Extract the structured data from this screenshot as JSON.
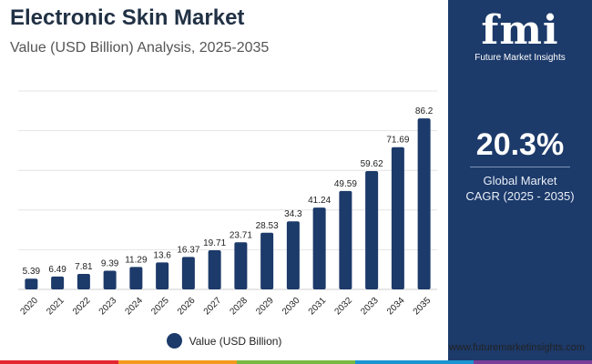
{
  "header": {
    "title": "Electronic Skin Market",
    "subtitle": "Value (USD Billion) Analysis, 2025-2035"
  },
  "chart_data": {
    "type": "bar",
    "title": "Electronic Skin Market",
    "subtitle": "Value (USD Billion) Analysis, 2025-2035",
    "categories": [
      "2020",
      "2021",
      "2022",
      "2023",
      "2024",
      "2025",
      "2026",
      "2027",
      "2028",
      "2029",
      "2030",
      "2031",
      "2032",
      "2033",
      "2034",
      "2035"
    ],
    "series": [
      {
        "name": "Value (USD Billion)",
        "values": [
          5.39,
          6.49,
          7.81,
          9.39,
          11.29,
          13.6,
          16.37,
          19.71,
          23.71,
          28.53,
          34.3,
          41.24,
          49.59,
          59.62,
          71.69,
          86.2
        ],
        "labels": [
          "5.39",
          "6.49",
          "7.81",
          "9.39",
          "11.29",
          "13.6",
          "16.37",
          "19.71",
          "23.71",
          "28.53",
          "34.3",
          "41.24",
          "49.59",
          "59.62",
          "71.69",
          "86.2"
        ]
      }
    ],
    "xlabel": "",
    "ylabel": "",
    "ylim": [
      0,
      100
    ],
    "grid": true,
    "legend_position": "bottom",
    "bar_color": "#1c3a6a"
  },
  "legend": {
    "label": "Value (USD Billion)",
    "color": "#1c3a6a"
  },
  "side_panel": {
    "logo_text": "fmi",
    "logo_tagline": "Future Market Insights",
    "cagr_value": "20.3%",
    "cagr_label_line1": "Global Market",
    "cagr_label_line2": "CAGR (2025 - 2035)",
    "background": "#1c3a6a"
  },
  "footer": {
    "url": "www.futuremarketinsights.com",
    "bar_colors": [
      "#e3262f",
      "#f39a1f",
      "#79b943",
      "#1b95d2",
      "#7a3f98"
    ]
  }
}
